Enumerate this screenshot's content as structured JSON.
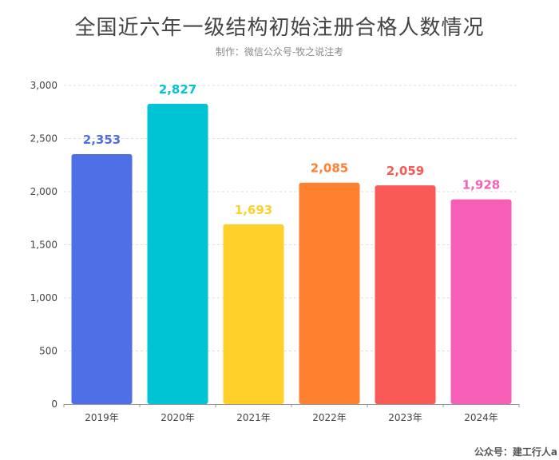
{
  "header": {
    "title": "全国近六年一级结构初始注册合格人数情况",
    "subtitle": "制作：微信公众号-牧之说注考"
  },
  "footer": {
    "watermark": "公众号：建工行人a"
  },
  "chart_data": {
    "type": "bar",
    "categories": [
      "2019年",
      "2020年",
      "2021年",
      "2022年",
      "2023年",
      "2024年"
    ],
    "values": [
      2353,
      2827,
      1693,
      2085,
      2059,
      1928
    ],
    "value_labels": [
      "2,353",
      "2,827",
      "1,693",
      "2,085",
      "2,059",
      "1,928"
    ],
    "colors": [
      "#4f6fe6",
      "#00c3d4",
      "#ffd02a",
      "#ff8130",
      "#f95a55",
      "#f75eb8"
    ],
    "label_colors": [
      "#4f6fe6",
      "#00c3d4",
      "#ffd02a",
      "#ff8130",
      "#f95a55",
      "#f75eb8"
    ],
    "ylim": [
      0,
      3000
    ],
    "yticks": [
      0,
      500,
      1000,
      1500,
      2000,
      2500,
      3000
    ],
    "ytick_labels": [
      "0",
      "500",
      "1,000",
      "1,500",
      "2,000",
      "2,500",
      "3,000"
    ],
    "grid": true,
    "legend": "none"
  }
}
